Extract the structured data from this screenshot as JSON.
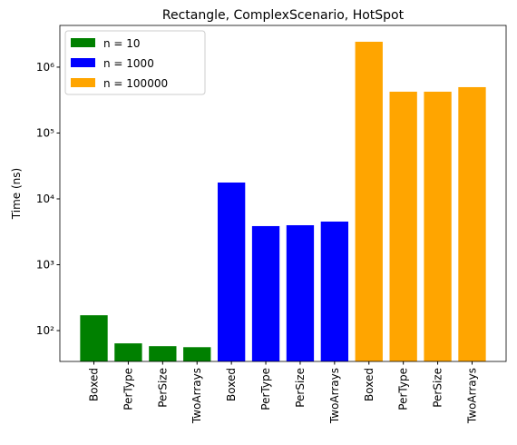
{
  "chart_data": {
    "type": "bar",
    "title": "Rectangle, ComplexScenario, HotSpot",
    "y_label": "Time (ns)",
    "categories": [
      "Boxed",
      "PerType",
      "PerSize",
      "TwoArrays",
      "Boxed",
      "PerType",
      "PerSize",
      "TwoArrays",
      "Boxed",
      "PerType",
      "PerSize",
      "TwoArrays"
    ],
    "series": [
      {
        "name": "n = 10",
        "color": "#008000",
        "values": [
          171,
          64,
          58,
          56,
          null,
          null,
          null,
          null,
          null,
          null,
          null,
          null
        ]
      },
      {
        "name": "n = 1000",
        "color": "#0000ff",
        "values": [
          null,
          null,
          null,
          null,
          17700,
          3860,
          3980,
          4520,
          null,
          null,
          null,
          null
        ]
      },
      {
        "name": "n = 100000",
        "color": "#ffa500",
        "values": [
          null,
          null,
          null,
          null,
          null,
          null,
          null,
          null,
          2430000,
          424000,
          424000,
          497000
        ]
      }
    ],
    "log_scale": true,
    "ylim": [
      34,
      4300000
    ],
    "yticks": [
      {
        "value": 100,
        "label": "10²"
      },
      {
        "value": 1000,
        "label": "10³"
      },
      {
        "value": 10000,
        "label": "10⁴"
      },
      {
        "value": 100000,
        "label": "10⁵"
      },
      {
        "value": 1000000,
        "label": "10⁶"
      }
    ],
    "legend": "upper left"
  }
}
